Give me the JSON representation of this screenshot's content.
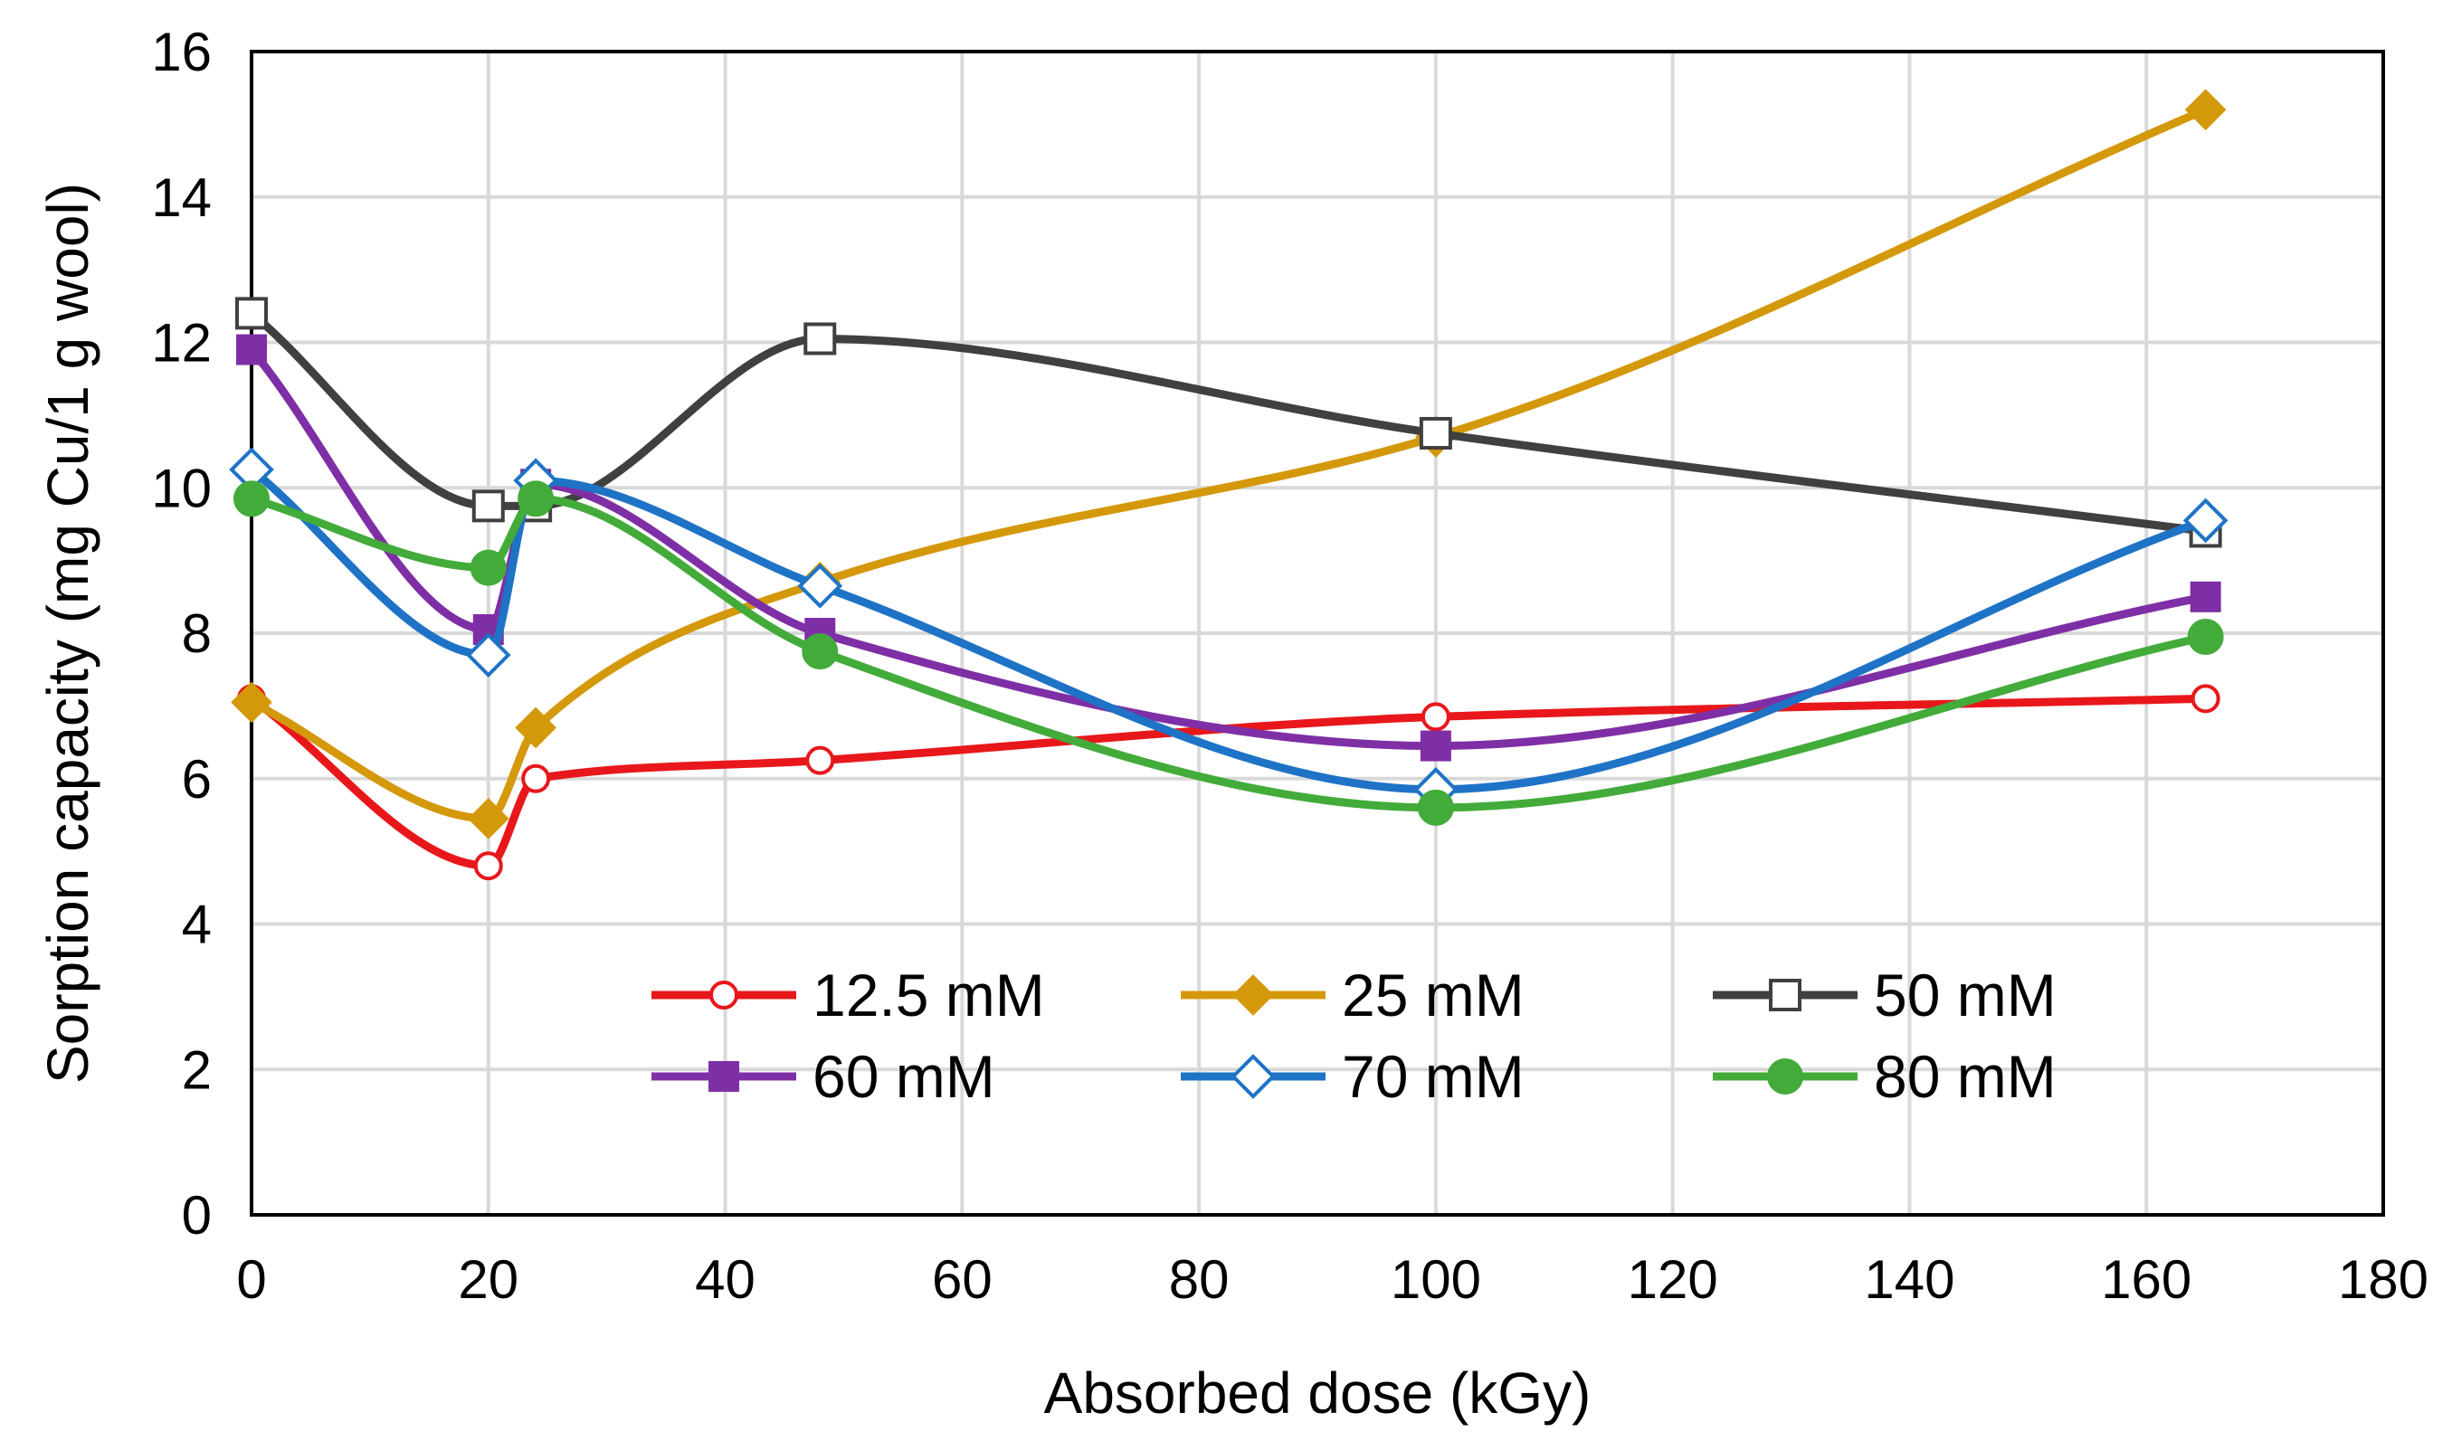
{
  "chart_data": {
    "type": "line",
    "smooth": true,
    "title": "",
    "xlabel": "Absorbed dose (kGy)",
    "ylabel": "Sorption capacity (mg Cu/1 g wool)",
    "xlim": [
      0,
      180
    ],
    "ylim": [
      0,
      16
    ],
    "x_ticks": [
      "0",
      "20",
      "40",
      "60",
      "80",
      "100",
      "120",
      "140",
      "160",
      "180"
    ],
    "y_ticks": [
      "0",
      "2",
      "4",
      "6",
      "8",
      "10",
      "12",
      "14",
      "16"
    ],
    "grid": true,
    "legend_position": "bottom-center",
    "series": [
      {
        "name": "12.5 mM",
        "color": "#e8171b",
        "marker": "circle-open",
        "x": [
          0,
          20,
          24,
          48,
          100,
          165
        ],
        "y": [
          7.1,
          4.8,
          6.0,
          6.25,
          6.85,
          7.1
        ]
      },
      {
        "name": "25 mM",
        "color": "#d4980b",
        "marker": "diamond-filled",
        "x": [
          0,
          20,
          24,
          48,
          100,
          165
        ],
        "y": [
          7.05,
          5.45,
          6.7,
          8.7,
          10.7,
          15.2
        ]
      },
      {
        "name": "50 mM",
        "color": "#404040",
        "marker": "square-open",
        "x": [
          0,
          20,
          24,
          48,
          100,
          165
        ],
        "y": [
          12.4,
          9.75,
          9.75,
          12.05,
          10.75,
          9.4
        ]
      },
      {
        "name": "60 mM",
        "color": "#7f2fa5",
        "marker": "square-filled",
        "x": [
          0,
          20,
          24,
          48,
          100,
          165
        ],
        "y": [
          11.9,
          8.05,
          10.05,
          8.0,
          6.45,
          8.5
        ]
      },
      {
        "name": "70 mM",
        "color": "#1f73c6",
        "marker": "diamond-open",
        "x": [
          0,
          20,
          24,
          48,
          100,
          165
        ],
        "y": [
          10.25,
          7.7,
          10.1,
          8.65,
          5.85,
          9.55
        ]
      },
      {
        "name": "80 mM",
        "color": "#43ab3a",
        "marker": "circle-filled",
        "x": [
          0,
          20,
          24,
          48,
          100,
          165
        ],
        "y": [
          9.85,
          8.9,
          9.85,
          7.75,
          5.6,
          7.95
        ]
      }
    ]
  }
}
